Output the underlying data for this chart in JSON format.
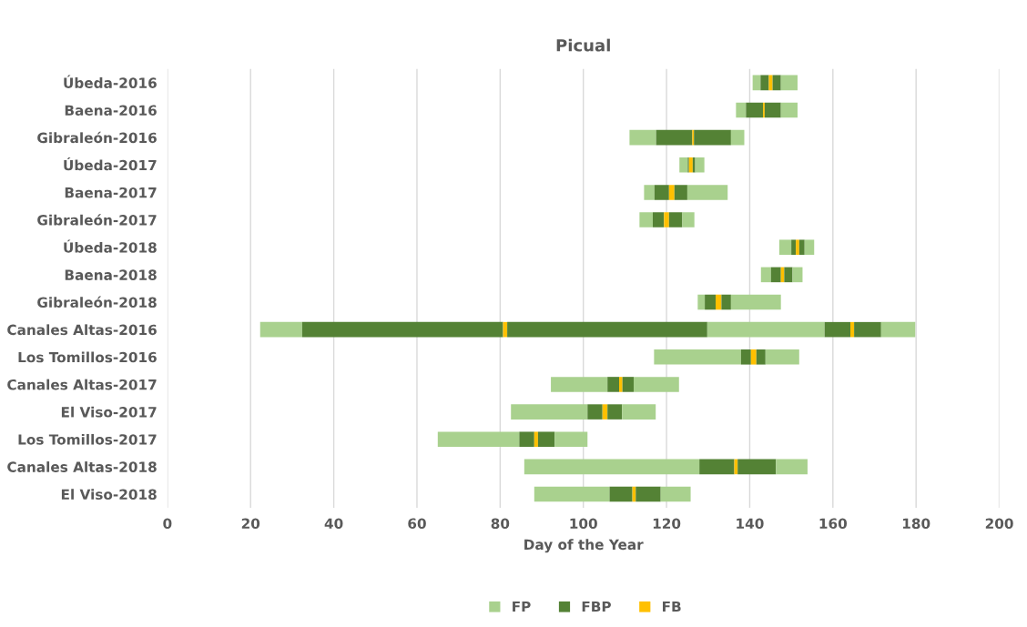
{
  "chart_data": {
    "type": "bar",
    "title": "Picual",
    "xlabel": "Day of the Year",
    "orientation": "horizontal",
    "categories": [
      "Úbeda-2016",
      "Baena-2016",
      "Gibraleón-2016",
      "Úbeda-2017",
      "Baena-2017",
      "Gibraleón-2017",
      "Úbeda-2018",
      "Baena-2018",
      "Gibraleón-2018",
      "Canales Altas-2016",
      "Los Tomillos-2016",
      "Canales Altas-2017",
      "El Viso-2017",
      "Los Tomillos-2017",
      "Canales Altas-2018",
      "El Viso-2018"
    ],
    "series": [
      {
        "name": "FP",
        "color": "#a9d18e",
        "base": [
          140.7,
          136.7,
          111.1,
          123.1,
          114.6,
          113.5,
          147.1,
          142.7,
          127.5,
          22.3,
          117.0,
          92.2,
          82.6,
          65.0,
          85.8,
          88.2
        ],
        "values": [
          1.9,
          2.4,
          6.4,
          2.0,
          2.5,
          3.2,
          2.9,
          2.4,
          1.7,
          10.1,
          20.9,
          13.6,
          18.4,
          19.6,
          42.1,
          18.1
        ]
      },
      {
        "name": "FBP",
        "color": "#548235",
        "base": [
          142.6,
          139.1,
          117.5,
          125.1,
          117.1,
          116.7,
          150.0,
          145.1,
          129.2,
          32.4,
          137.9,
          105.8,
          101.0,
          84.6,
          127.9,
          106.3
        ],
        "values": [
          2.0,
          4.1,
          8.7,
          0.3,
          3.5,
          2.7,
          1.1,
          2.4,
          2.6,
          48.3,
          2.4,
          2.8,
          3.6,
          3.6,
          8.4,
          5.5
        ]
      },
      {
        "name": "FB",
        "color": "#ffc000",
        "base": [
          144.6,
          143.2,
          126.2,
          125.4,
          120.6,
          119.4,
          151.1,
          147.5,
          131.8,
          80.7,
          140.3,
          108.6,
          104.6,
          88.2,
          136.3,
          111.8
        ],
        "values": [
          0.9,
          0.4,
          0.4,
          0.9,
          1.3,
          1.2,
          0.8,
          0.8,
          1.4,
          1.0,
          1.3,
          0.8,
          1.2,
          0.9,
          0.8,
          0.8
        ]
      },
      {
        "color": "#548235",
        "base": [
          145.5,
          143.6,
          126.6,
          126.3,
          121.9,
          120.6,
          151.9,
          148.3,
          133.2,
          81.7,
          141.6,
          109.4,
          105.8,
          89.1,
          137.1,
          112.6
        ],
        "values": [
          2.0,
          3.9,
          8.9,
          0.6,
          3.1,
          3.2,
          1.3,
          2.0,
          2.3,
          48.1,
          2.2,
          2.7,
          3.5,
          4.0,
          9.2,
          6.0
        ]
      },
      {
        "color": "#a9d18e",
        "base": [
          147.5,
          147.5,
          135.5,
          126.9,
          125.0,
          123.8,
          153.2,
          150.3,
          135.5,
          129.8,
          143.8,
          112.1,
          109.3,
          93.1,
          146.3,
          118.6
        ],
        "values": [
          4.0,
          4.0,
          3.2,
          2.2,
          9.7,
          2.9,
          2.3,
          2.4,
          12.0,
          28.2,
          8.1,
          10.9,
          8.1,
          7.9,
          7.6,
          7.2
        ]
      },
      {
        "color": "#548235",
        "base": [
          null,
          null,
          null,
          null,
          null,
          null,
          null,
          null,
          null,
          158.0,
          null,
          null,
          null,
          null,
          null,
          null
        ],
        "values": [
          null,
          null,
          null,
          null,
          null,
          null,
          null,
          null,
          null,
          6.2,
          null,
          null,
          null,
          null,
          null,
          null
        ]
      },
      {
        "color": "#ffc000",
        "base": [
          null,
          null,
          null,
          null,
          null,
          null,
          null,
          null,
          null,
          164.2,
          null,
          null,
          null,
          null,
          null,
          null
        ],
        "values": [
          null,
          null,
          null,
          null,
          null,
          null,
          null,
          null,
          null,
          0.9,
          null,
          null,
          null,
          null,
          null,
          null
        ]
      },
      {
        "color": "#548235",
        "base": [
          null,
          null,
          null,
          null,
          null,
          null,
          null,
          null,
          null,
          165.1,
          null,
          null,
          null,
          null,
          null,
          null
        ],
        "values": [
          null,
          null,
          null,
          null,
          null,
          null,
          null,
          null,
          null,
          6.5,
          null,
          null,
          null,
          null,
          null,
          null
        ]
      },
      {
        "color": "#a9d18e",
        "base": [
          null,
          null,
          null,
          null,
          null,
          null,
          null,
          null,
          null,
          171.6,
          null,
          null,
          null,
          null,
          null,
          null
        ],
        "values": [
          null,
          null,
          null,
          null,
          null,
          null,
          null,
          null,
          null,
          8.2,
          null,
          null,
          null,
          null,
          null,
          null
        ]
      }
    ],
    "xlim": [
      0,
      200
    ],
    "xticks": [
      0,
      20,
      40,
      60,
      80,
      100,
      120,
      140,
      160,
      180,
      200
    ],
    "grid": "x",
    "legend": "bottom"
  }
}
